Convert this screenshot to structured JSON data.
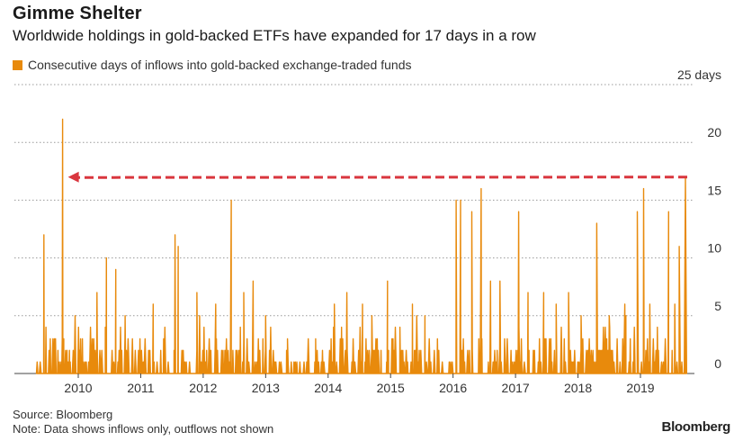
{
  "header": {
    "title": "Gimme Shelter",
    "subtitle": "Worldwide holdings in gold-backed ETFs have expanded for 17 days in a row"
  },
  "footer": {
    "source": "Source: Bloomberg",
    "note": "Note: Data shows inflows only, outflows not shown",
    "brand": "Bloomberg"
  },
  "colors": {
    "series": "#e88a0c",
    "arrow": "#d9363e",
    "grid": "#9a9a9a"
  },
  "chart_data": {
    "type": "area",
    "title": "Gimme Shelter",
    "legend": [
      "Consecutive days of inflows into gold-backed exchange-traded funds"
    ],
    "legend_position": "top-left",
    "ylabel": "days",
    "y_tick_labels": [
      "25 days",
      "20",
      "15",
      "10",
      "5",
      "0"
    ],
    "y_ticks": [
      25,
      20,
      15,
      10,
      5,
      0
    ],
    "ylim": [
      0,
      25
    ],
    "xlim": [
      2009.3,
      2019.75
    ],
    "x_ticks": [
      2010,
      2011,
      2012,
      2013,
      2014,
      2015,
      2016,
      2017,
      2018,
      2019
    ],
    "x_tick_labels": [
      "2010",
      "2011",
      "2012",
      "2013",
      "2014",
      "2015",
      "2016",
      "2017",
      "2018",
      "2019"
    ],
    "grid": "horizontal dotted",
    "annotation": {
      "type": "arrow",
      "from": [
        2019.72,
        17
      ],
      "to": [
        2009.75,
        17
      ],
      "style": "dashed red"
    },
    "peaks": [
      {
        "x": 2009.45,
        "y": 12
      },
      {
        "x": 2009.75,
        "y": 22
      },
      {
        "x": 2010.3,
        "y": 7
      },
      {
        "x": 2010.45,
        "y": 10
      },
      {
        "x": 2010.6,
        "y": 9
      },
      {
        "x": 2010.75,
        "y": 5
      },
      {
        "x": 2011.2,
        "y": 6
      },
      {
        "x": 2011.55,
        "y": 12
      },
      {
        "x": 2011.6,
        "y": 11
      },
      {
        "x": 2011.9,
        "y": 7
      },
      {
        "x": 2012.2,
        "y": 6
      },
      {
        "x": 2012.45,
        "y": 15
      },
      {
        "x": 2012.65,
        "y": 7
      },
      {
        "x": 2012.8,
        "y": 8
      },
      {
        "x": 2013.0,
        "y": 5
      },
      {
        "x": 2013.35,
        "y": 3
      },
      {
        "x": 2013.8,
        "y": 3
      },
      {
        "x": 2014.1,
        "y": 6
      },
      {
        "x": 2014.3,
        "y": 7
      },
      {
        "x": 2014.55,
        "y": 6
      },
      {
        "x": 2014.7,
        "y": 5
      },
      {
        "x": 2014.95,
        "y": 8
      },
      {
        "x": 2015.15,
        "y": 4
      },
      {
        "x": 2015.35,
        "y": 6
      },
      {
        "x": 2015.55,
        "y": 5
      },
      {
        "x": 2015.75,
        "y": 3
      },
      {
        "x": 2016.05,
        "y": 15
      },
      {
        "x": 2016.12,
        "y": 15
      },
      {
        "x": 2016.3,
        "y": 14
      },
      {
        "x": 2016.45,
        "y": 16
      },
      {
        "x": 2016.6,
        "y": 8
      },
      {
        "x": 2016.75,
        "y": 8
      },
      {
        "x": 2017.05,
        "y": 14
      },
      {
        "x": 2017.2,
        "y": 7
      },
      {
        "x": 2017.45,
        "y": 7
      },
      {
        "x": 2017.65,
        "y": 6
      },
      {
        "x": 2017.85,
        "y": 7
      },
      {
        "x": 2018.05,
        "y": 5
      },
      {
        "x": 2018.3,
        "y": 13
      },
      {
        "x": 2018.5,
        "y": 5
      },
      {
        "x": 2018.75,
        "y": 6
      },
      {
        "x": 2018.95,
        "y": 14
      },
      {
        "x": 2019.05,
        "y": 16
      },
      {
        "x": 2019.15,
        "y": 6
      },
      {
        "x": 2019.45,
        "y": 14
      },
      {
        "x": 2019.55,
        "y": 6
      },
      {
        "x": 2019.62,
        "y": 11
      },
      {
        "x": 2019.72,
        "y": 17
      }
    ]
  }
}
